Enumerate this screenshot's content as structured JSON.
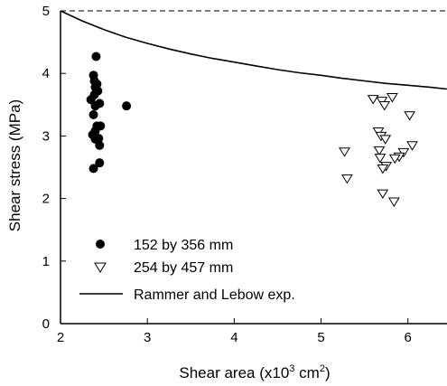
{
  "chart_data": {
    "type": "scatter",
    "title": "",
    "xlabel_main": "Shear area (x10",
    "xlabel_exp": "3",
    "xlabel_unit": " cm",
    "xlabel_unit_exp": "2",
    "xlabel_close": ")",
    "ylabel": "Shear stress (MPa)",
    "xlim": [
      2,
      6.45
    ],
    "ylim": [
      0,
      5
    ],
    "xticks": [
      "2",
      "3",
      "4",
      "5",
      "6"
    ],
    "yticks": [
      "0",
      "1",
      "2",
      "3",
      "4",
      "5"
    ],
    "grid": false,
    "legend_position": "lower-left",
    "series": [
      {
        "name": "152 by 356 mm",
        "marker": "filled-circle",
        "color": "#000000",
        "points": [
          [
            2.41,
            4.27
          ],
          [
            2.38,
            3.97
          ],
          [
            2.39,
            3.88
          ],
          [
            2.42,
            3.83
          ],
          [
            2.4,
            3.78
          ],
          [
            2.43,
            3.72
          ],
          [
            2.39,
            3.66
          ],
          [
            2.35,
            3.58
          ],
          [
            2.45,
            3.52
          ],
          [
            2.4,
            3.48
          ],
          [
            2.76,
            3.48
          ],
          [
            2.38,
            3.34
          ],
          [
            2.42,
            3.16
          ],
          [
            2.46,
            3.16
          ],
          [
            2.4,
            3.08
          ],
          [
            2.37,
            3.02
          ],
          [
            2.44,
            2.96
          ],
          [
            2.4,
            2.95
          ],
          [
            2.45,
            2.85
          ],
          [
            2.45,
            2.57
          ],
          [
            2.38,
            2.48
          ]
        ]
      },
      {
        "name": "254 by 457 mm",
        "marker": "open-triangle-down",
        "color": "#000000",
        "points": [
          [
            5.6,
            3.59
          ],
          [
            5.7,
            3.56
          ],
          [
            5.82,
            3.62
          ],
          [
            5.73,
            3.49
          ],
          [
            6.02,
            3.33
          ],
          [
            5.66,
            3.07
          ],
          [
            5.69,
            3.0
          ],
          [
            5.74,
            2.95
          ],
          [
            6.05,
            2.85
          ],
          [
            5.67,
            2.77
          ],
          [
            5.95,
            2.74
          ],
          [
            5.27,
            2.75
          ],
          [
            5.9,
            2.67
          ],
          [
            5.85,
            2.64
          ],
          [
            5.68,
            2.65
          ],
          [
            5.75,
            2.52
          ],
          [
            5.71,
            2.48
          ],
          [
            5.3,
            2.32
          ],
          [
            5.71,
            2.08
          ],
          [
            5.84,
            1.95
          ]
        ]
      },
      {
        "name": "Rammer and Lebow exp.",
        "type": "line",
        "color": "#000000",
        "points": [
          [
            2.0,
            5.0
          ],
          [
            2.25,
            4.84
          ],
          [
            2.5,
            4.7
          ],
          [
            2.75,
            4.58
          ],
          [
            3.0,
            4.48
          ],
          [
            3.25,
            4.39
          ],
          [
            3.5,
            4.31
          ],
          [
            3.75,
            4.24
          ],
          [
            4.0,
            4.18
          ],
          [
            4.25,
            4.12
          ],
          [
            4.5,
            4.06
          ],
          [
            4.75,
            4.01
          ],
          [
            5.0,
            3.97
          ],
          [
            5.25,
            3.92
          ],
          [
            5.5,
            3.88
          ],
          [
            5.75,
            3.84
          ],
          [
            6.0,
            3.81
          ],
          [
            6.25,
            3.78
          ],
          [
            6.45,
            3.75
          ]
        ]
      }
    ]
  }
}
